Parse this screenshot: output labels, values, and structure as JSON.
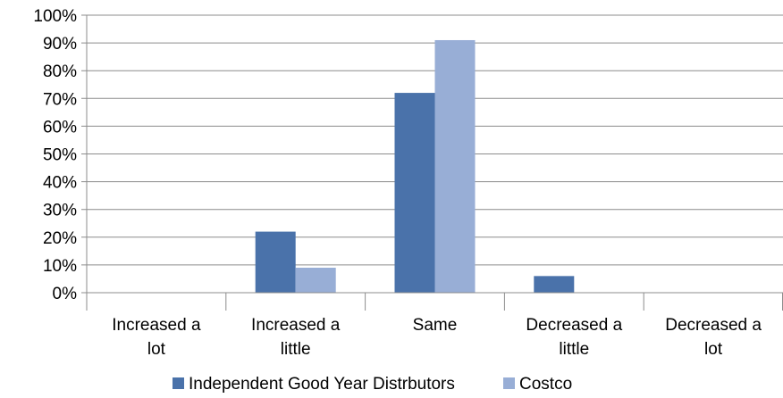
{
  "chart_data": {
    "type": "bar",
    "categories": [
      [
        "Increased a",
        "lot"
      ],
      [
        "Increased a",
        "little"
      ],
      [
        "Same"
      ],
      [
        "Decreased a",
        "little"
      ],
      [
        "Decreased a",
        "lot"
      ]
    ],
    "series": [
      {
        "name": "Independent Good Year Distrbutors",
        "color": "#4a72aa",
        "values": [
          0,
          22,
          72,
          6,
          0
        ]
      },
      {
        "name": "Costco",
        "color": "#98aed6",
        "values": [
          0,
          9,
          91,
          0,
          0
        ]
      }
    ],
    "ylim": [
      0,
      100
    ],
    "yticks": [
      "0%",
      "10%",
      "20%",
      "30%",
      "40%",
      "50%",
      "60%",
      "70%",
      "80%",
      "90%",
      "100%"
    ],
    "grid": true,
    "legend": "bottom"
  }
}
